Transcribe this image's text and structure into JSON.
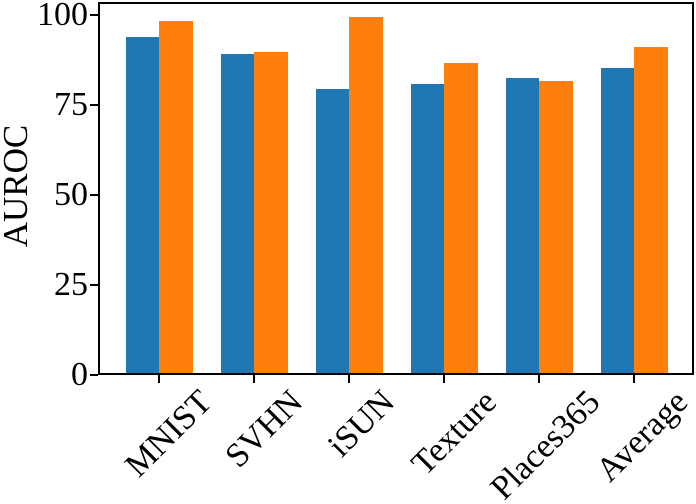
{
  "chart_data": {
    "type": "bar",
    "title": "",
    "xlabel": "",
    "ylabel": "AUROC",
    "categories": [
      "MNIST",
      "SVHN",
      "iSUN",
      "Texture",
      "Places365",
      "Average"
    ],
    "series": [
      {
        "name": "series-blue",
        "color": "#1f77b4",
        "values": [
          93.9,
          89.2,
          79.4,
          80.9,
          82.5,
          85.2
        ]
      },
      {
        "name": "series-orange",
        "color": "#ff7f0e",
        "values": [
          98.4,
          89.8,
          99.3,
          86.8,
          81.7,
          91.2
        ]
      }
    ],
    "ylim": [
      0,
      103.6
    ],
    "yticks": [
      "0",
      "25",
      "50",
      "75",
      "100"
    ],
    "ytick_values": [
      0,
      25,
      50,
      75,
      100
    ],
    "grid": false,
    "legend": "none",
    "xtick_label_rotation_deg": 45
  }
}
